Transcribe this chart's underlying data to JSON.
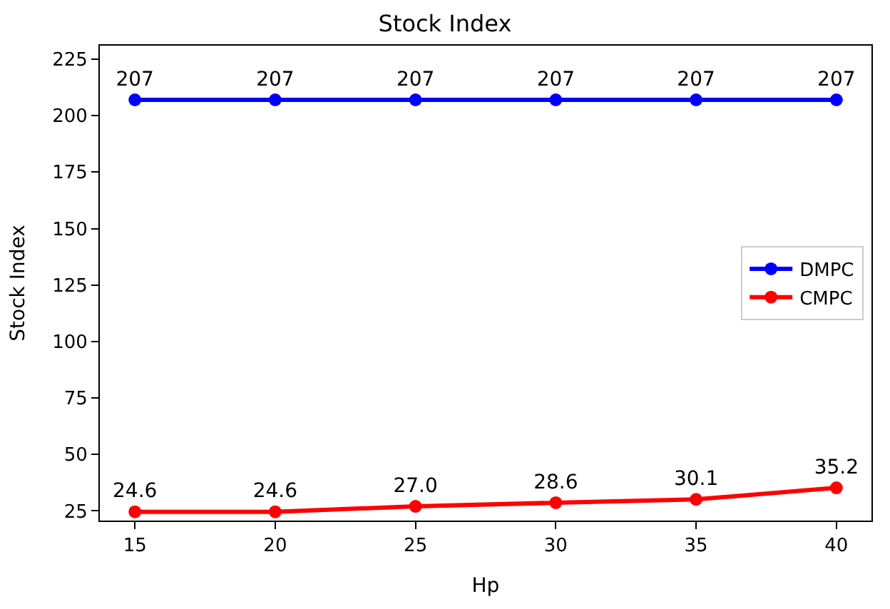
{
  "chart_data": {
    "type": "line",
    "title": "Stock Index",
    "xlabel": "Hp",
    "ylabel": "Stock Index",
    "x": [
      15,
      20,
      25,
      30,
      35,
      40
    ],
    "series": [
      {
        "name": "DMPC",
        "color": "#0000ff",
        "values": [
          207,
          207,
          207,
          207,
          207,
          207
        ],
        "value_labels": [
          "207",
          "207",
          "207",
          "207",
          "207",
          "207"
        ]
      },
      {
        "name": "CMPC",
        "color": "#ff0000",
        "values": [
          24.6,
          24.6,
          27.0,
          28.6,
          30.1,
          35.2
        ],
        "value_labels": [
          "24.6",
          "24.6",
          "27.0",
          "28.6",
          "30.1",
          "35.2"
        ]
      }
    ],
    "xlim": [
      13.75,
      41.25
    ],
    "xticks": [
      15,
      20,
      25,
      30,
      35,
      40
    ],
    "ylim": [
      20.7,
      231
    ],
    "yticks": [
      25,
      50,
      75,
      100,
      125,
      150,
      175,
      200,
      225
    ],
    "marker": "circle",
    "line_style": "solid",
    "legend": "right"
  }
}
